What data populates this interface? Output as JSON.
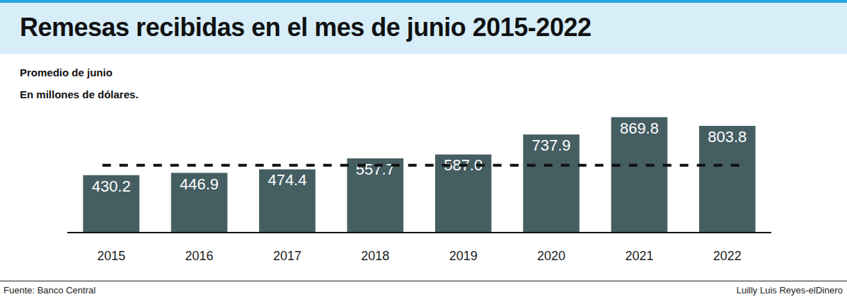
{
  "chart_data": {
    "type": "bar",
    "title": "Remesas recibidas en el mes de junio 2015-2022",
    "subtitle": [
      "Promedio de junio",
      "En millones de dólares."
    ],
    "source": "Fuente: Banco Central",
    "credit": "Luilly Luis Reyes-elDinero",
    "categories": [
      "2015",
      "2016",
      "2017",
      "2018",
      "2019",
      "2020",
      "2021",
      "2022"
    ],
    "values": [
      430.2,
      446.9,
      474.4,
      557.7,
      587.0,
      737.9,
      869.8,
      803.8
    ],
    "value_labels": [
      "430.2",
      "446.9",
      "474.4",
      "557.7",
      "587.0",
      "737.9",
      "869.8",
      "803.8"
    ],
    "color": "#455e62",
    "ylim": [
      0,
      900
    ],
    "yticks": [],
    "grid": false,
    "tick_labels": "x",
    "data_labels": true,
    "reference_line": {
      "value": 505,
      "line_style": "dash",
      "color": "#111111"
    }
  }
}
